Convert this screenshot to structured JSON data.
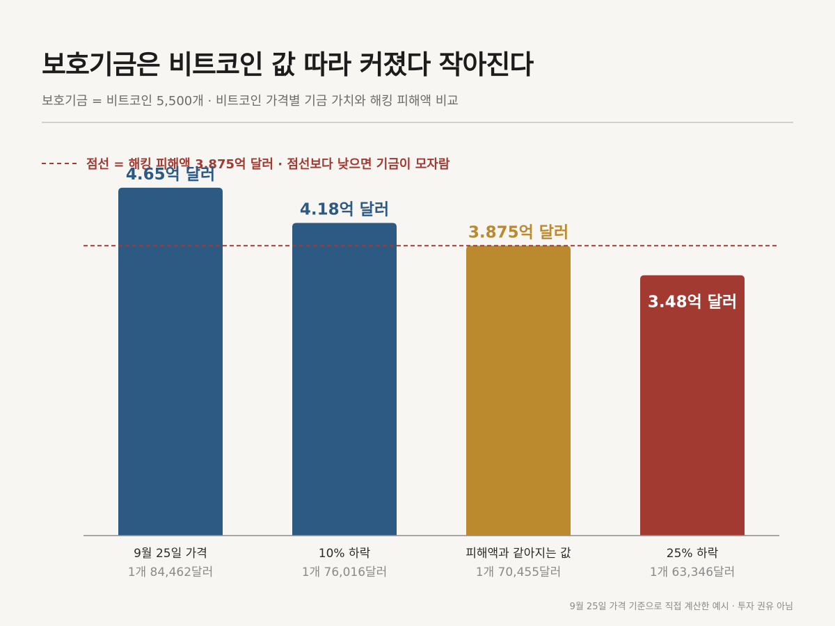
{
  "header": {
    "title": "보호기금은 비트코인 값 따라 커졌다 작아진다",
    "subtitle": "보호기금 = 비트코인 5,500개 · 비트코인 가격별 기금 가치와 해킹 피해액 비교"
  },
  "legend_note": "점선 = 해킹 피해액 3.875억 달러 · 점선보다 낮으면 기금이 모자람",
  "footnote": "9월 25일 가격 기준으로 직접 계산한 예시 · 투자 권유 아님",
  "colors": {
    "blue": "#2d5a83",
    "gold": "#bb8a2e",
    "red": "#a33a32",
    "threshold": "#a33a32"
  },
  "chart_data": {
    "type": "bar",
    "categories": [
      "9월 25일 가격",
      "10% 하락",
      "피해액과 같아지는 값",
      "25% 하락"
    ],
    "sublabels": [
      "1개 84,462달러",
      "1개 76,016달러",
      "1개 70,455달러",
      "1개 63,346달러"
    ],
    "values": [
      4.65,
      4.18,
      3.875,
      3.48
    ],
    "value_labels": [
      "4.65억 달러",
      "4.18억 달러",
      "3.875억 달러",
      "3.48억 달러"
    ],
    "bar_colors": [
      "#2d5a83",
      "#2d5a83",
      "#bb8a2e",
      "#a33a32"
    ],
    "label_colors": [
      "#2d5a83",
      "#2d5a83",
      "#bb8a2e",
      "#ffffff"
    ],
    "label_inside": [
      false,
      false,
      false,
      true
    ],
    "threshold": 3.875,
    "ylim": [
      0,
      5.3
    ],
    "grid": false
  }
}
